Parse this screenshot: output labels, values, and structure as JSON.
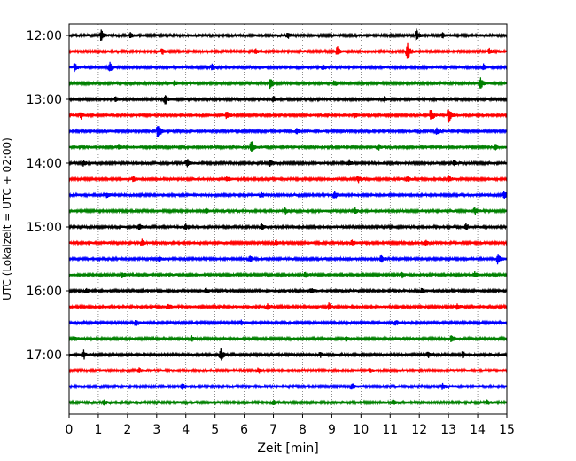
{
  "chart_data": {
    "type": "line",
    "title": "",
    "xlabel": "Zeit  [min]",
    "ylabel": "UTC (Lokalzeit = UTC + 02:00)",
    "xlim": [
      0,
      15
    ],
    "x_ticks": [
      0,
      1,
      2,
      3,
      4,
      5,
      6,
      7,
      8,
      9,
      10,
      11,
      12,
      13,
      14,
      15
    ],
    "x_tick_labels": [
      "0",
      "1",
      "2",
      "3",
      "4",
      "5",
      "6",
      "7",
      "8",
      "9",
      "10",
      "11",
      "12",
      "13",
      "14",
      "15"
    ],
    "y_tick_labels": [
      "12:00",
      "13:00",
      "14:00",
      "15:00",
      "16:00",
      "17:00"
    ],
    "grid": "vertical dotted",
    "line_colors": [
      "#000000",
      "#ff0000",
      "#0000ff",
      "#008000"
    ],
    "series": [
      {
        "start": "12:00",
        "color": "#000000",
        "events": [
          [
            1.1,
            1.0
          ],
          [
            11.9,
            1.0
          ],
          [
            2.1,
            0.5
          ],
          [
            7.5,
            0.45
          ],
          [
            12.8,
            0.5
          ]
        ]
      },
      {
        "start": "12:15",
        "color": "#ff0000",
        "events": [
          [
            11.6,
            1.6
          ],
          [
            9.2,
            0.8
          ],
          [
            3.2,
            0.45
          ],
          [
            6.4,
            0.4
          ],
          [
            14.4,
            0.45
          ]
        ]
      },
      {
        "start": "12:30",
        "color": "#0000ff",
        "events": [
          [
            0.2,
            0.8
          ],
          [
            1.4,
            0.8
          ],
          [
            4.9,
            0.45
          ],
          [
            8.7,
            0.45
          ],
          [
            14.2,
            0.45
          ]
        ]
      },
      {
        "start": "12:45",
        "color": "#008000",
        "events": [
          [
            6.9,
            1.0
          ],
          [
            14.1,
            1.0
          ],
          [
            9.1,
            0.5
          ],
          [
            3.6,
            0.45
          ]
        ]
      },
      {
        "start": "13:00",
        "color": "#000000",
        "events": [
          [
            3.3,
            0.9
          ],
          [
            7.0,
            0.45
          ],
          [
            10.8,
            0.5
          ],
          [
            1.6,
            0.4
          ]
        ]
      },
      {
        "start": "13:15",
        "color": "#ff0000",
        "events": [
          [
            13.0,
            1.6
          ],
          [
            12.4,
            1.2
          ],
          [
            5.4,
            0.7
          ],
          [
            0.4,
            0.7
          ],
          [
            9.8,
            0.45
          ]
        ]
      },
      {
        "start": "13:30",
        "color": "#0000ff",
        "events": [
          [
            3.05,
            1.6
          ],
          [
            7.8,
            0.45
          ],
          [
            12.6,
            0.5
          ]
        ]
      },
      {
        "start": "13:45",
        "color": "#008000",
        "events": [
          [
            6.25,
            1.1
          ],
          [
            10.6,
            0.45
          ],
          [
            1.7,
            0.4
          ],
          [
            14.6,
            0.5
          ]
        ]
      },
      {
        "start": "14:00",
        "color": "#000000",
        "events": [
          [
            4.05,
            0.8
          ],
          [
            0.5,
            0.5
          ],
          [
            6.9,
            0.5
          ],
          [
            9.6,
            0.45
          ],
          [
            13.2,
            0.45
          ]
        ]
      },
      {
        "start": "14:15",
        "color": "#ff0000",
        "events": [
          [
            9.9,
            0.6
          ],
          [
            13.0,
            0.6
          ],
          [
            11.6,
            0.5
          ],
          [
            5.4,
            0.45
          ],
          [
            2.2,
            0.4
          ]
        ]
      },
      {
        "start": "14:30",
        "color": "#0000ff",
        "events": [
          [
            9.1,
            0.7
          ],
          [
            14.9,
            0.6
          ],
          [
            1.3,
            0.45
          ],
          [
            6.6,
            0.45
          ]
        ]
      },
      {
        "start": "14:45",
        "color": "#008000",
        "events": [
          [
            9.8,
            0.5
          ],
          [
            13.9,
            0.6
          ],
          [
            4.7,
            0.45
          ],
          [
            7.4,
            0.45
          ]
        ]
      },
      {
        "start": "15:00",
        "color": "#000000",
        "events": [
          [
            2.4,
            0.55
          ],
          [
            4.0,
            0.5
          ],
          [
            6.6,
            0.45
          ],
          [
            13.6,
            0.5
          ]
        ]
      },
      {
        "start": "15:15",
        "color": "#ff0000",
        "events": [
          [
            2.5,
            0.55
          ],
          [
            7.1,
            0.45
          ],
          [
            9.7,
            0.45
          ],
          [
            12.2,
            0.45
          ]
        ]
      },
      {
        "start": "15:30",
        "color": "#0000ff",
        "events": [
          [
            14.7,
            1.0
          ],
          [
            10.7,
            0.6
          ],
          [
            3.1,
            0.45
          ],
          [
            6.2,
            0.45
          ]
        ]
      },
      {
        "start": "15:45",
        "color": "#008000",
        "events": [
          [
            1.8,
            0.5
          ],
          [
            8.1,
            0.45
          ],
          [
            11.4,
            0.5
          ],
          [
            13.9,
            0.45
          ]
        ]
      },
      {
        "start": "16:00",
        "color": "#000000",
        "events": [
          [
            0.6,
            0.4
          ],
          [
            4.7,
            0.45
          ],
          [
            8.3,
            0.45
          ],
          [
            12.1,
            0.45
          ]
        ]
      },
      {
        "start": "16:15",
        "color": "#ff0000",
        "events": [
          [
            8.9,
            0.6
          ],
          [
            3.4,
            0.45
          ],
          [
            6.8,
            0.45
          ],
          [
            13.3,
            0.45
          ]
        ]
      },
      {
        "start": "16:30",
        "color": "#0000ff",
        "events": [
          [
            2.3,
            0.55
          ],
          [
            5.9,
            0.45
          ],
          [
            11.2,
            0.45
          ]
        ]
      },
      {
        "start": "16:45",
        "color": "#008000",
        "events": [
          [
            13.1,
            0.6
          ],
          [
            0.2,
            0.45
          ],
          [
            4.2,
            0.5
          ],
          [
            9.5,
            0.45
          ]
        ]
      },
      {
        "start": "17:00",
        "color": "#000000",
        "events": [
          [
            5.2,
            1.3
          ],
          [
            0.5,
            0.8
          ],
          [
            13.5,
            0.6
          ],
          [
            12.3,
            0.5
          ],
          [
            8.6,
            0.45
          ]
        ]
      },
      {
        "start": "17:15",
        "color": "#ff0000",
        "events": [
          [
            2.4,
            0.45
          ],
          [
            6.5,
            0.45
          ],
          [
            10.3,
            0.45
          ]
        ]
      },
      {
        "start": "17:30",
        "color": "#0000ff",
        "events": [
          [
            3.9,
            0.55
          ],
          [
            9.7,
            0.5
          ],
          [
            12.8,
            0.45
          ]
        ]
      },
      {
        "start": "17:45",
        "color": "#008000",
        "events": [
          [
            1.2,
            0.45
          ],
          [
            7.0,
            0.45
          ],
          [
            11.1,
            0.45
          ],
          [
            14.3,
            0.45
          ]
        ]
      }
    ]
  }
}
